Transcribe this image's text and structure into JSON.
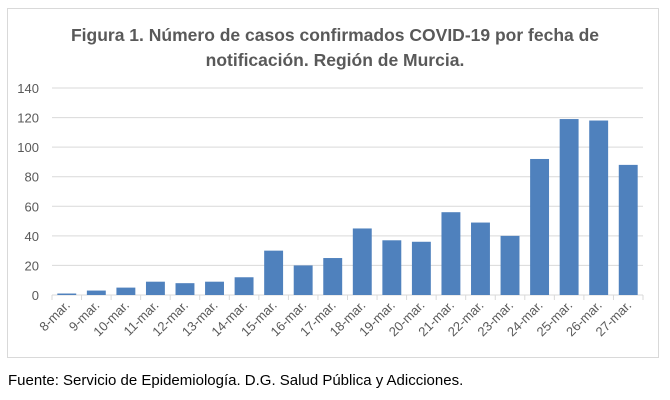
{
  "chart_data": {
    "type": "bar",
    "title_lines": [
      "Figura 1. Número de casos confirmados COVID-19 por fecha de",
      "notificación. Región de Murcia."
    ],
    "categories": [
      "8-mar.",
      "9-mar.",
      "10-mar.",
      "11-mar.",
      "12-mar.",
      "13-mar.",
      "14-mar.",
      "15-mar.",
      "16-mar.",
      "17-mar.",
      "18-mar.",
      "19-mar.",
      "20-mar.",
      "21-mar.",
      "22-mar.",
      "23-mar.",
      "24-mar.",
      "25-mar.",
      "26-mar.",
      "27-mar."
    ],
    "values": [
      1,
      3,
      5,
      9,
      8,
      9,
      12,
      30,
      20,
      25,
      45,
      37,
      36,
      56,
      49,
      40,
      92,
      119,
      118,
      88
    ],
    "xlabel": "",
    "ylabel": "",
    "ylim": [
      0,
      140
    ],
    "yticks": [
      0,
      20,
      40,
      60,
      80,
      100,
      120,
      140
    ],
    "grid": true,
    "legend": "none",
    "bar_color": "#4f81bd"
  },
  "footer": "Fuente: Servicio de Epidemiología. D.G. Salud Pública y Adicciones."
}
